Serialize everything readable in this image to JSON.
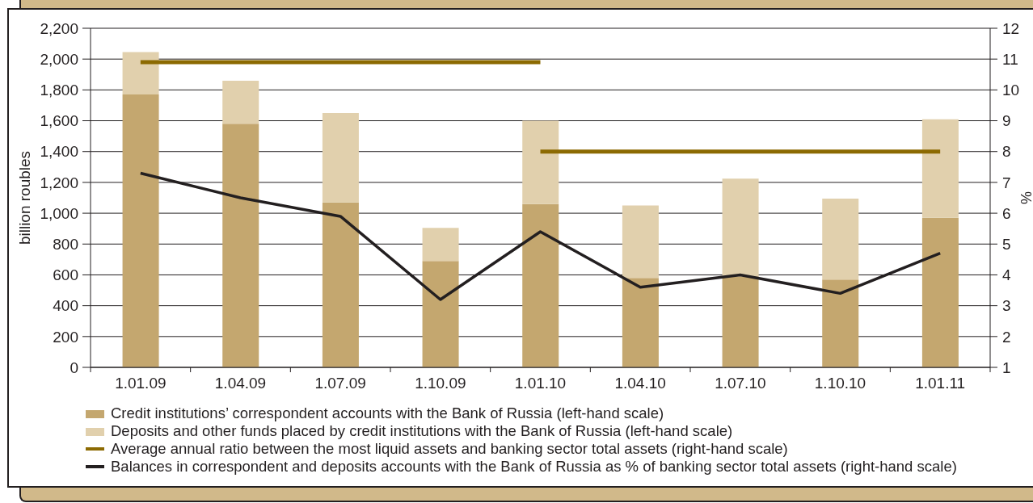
{
  "chart_data": {
    "type": "bar",
    "stacked": true,
    "categories": [
      "1.01.09",
      "1.04.09",
      "1.07.09",
      "1.10.09",
      "1.01.10",
      "1.04.10",
      "1.07.10",
      "1.10.10",
      "1.01.11"
    ],
    "series": [
      {
        "name": "Credit institutions’ correspondent accounts with the Bank of Russia (left-hand scale)",
        "color": "#c4a76f",
        "values": [
          1770,
          1580,
          1070,
          690,
          1060,
          580,
          590,
          570,
          970
        ]
      },
      {
        "name": "Deposits and other funds placed by credit institutions with the Bank of Russia (left-hand scale)",
        "color": "#e1d0ad",
        "values": [
          275,
          280,
          580,
          215,
          540,
          470,
          635,
          525,
          640
        ]
      },
      {
        "name": "Average annual ratio between the most liquid assets and banking sector total assets (right-hand scale)",
        "type": "line",
        "axis": "y2",
        "color": "#8c6a02",
        "values": [
          10.9,
          10.9,
          10.9,
          10.9,
          10.9,
          null,
          null,
          null,
          null
        ]
      },
      {
        "type": "line",
        "axis": "y2",
        "color": "#8c6a02",
        "values": [
          null,
          null,
          null,
          null,
          8.0,
          8.0,
          8.0,
          8.0,
          8.0
        ]
      },
      {
        "name": "Balances in correspondent and deposits accounts with the Bank of Russia as % of banking sector total assets (right-hand scale)",
        "type": "line",
        "axis": "y2",
        "color": "#231f20",
        "values": [
          7.3,
          6.5,
          5.9,
          3.2,
          5.4,
          3.6,
          4.0,
          3.4,
          4.7
        ]
      }
    ],
    "ylabel": "billion roubles",
    "y2label": "%",
    "ylim": [
      0,
      2200
    ],
    "yticks": [
      0,
      200,
      400,
      600,
      800,
      {
        "value": 1000,
        "label": "1,000"
      },
      {
        "value": 1200,
        "label": "1,200"
      },
      {
        "value": 1400,
        "label": "1,400"
      },
      {
        "value": 1600,
        "label": "1,600"
      },
      {
        "value": 1800,
        "label": "1,800"
      },
      {
        "value": 2000,
        "label": "2,000"
      },
      {
        "value": 2200,
        "label": "2,200"
      }
    ],
    "y2lim": [
      1,
      12
    ],
    "y2ticks": [
      1,
      2,
      3,
      4,
      5,
      6,
      7,
      8,
      9,
      10,
      11,
      12
    ],
    "grid": "y",
    "legend": "bottom"
  }
}
